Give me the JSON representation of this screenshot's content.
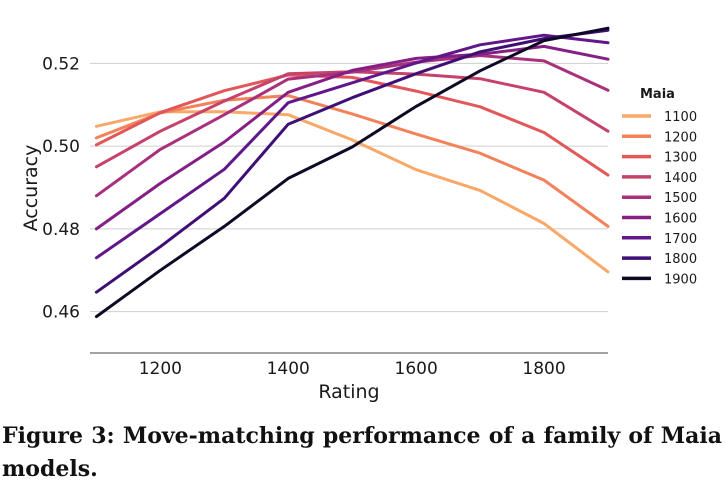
{
  "caption": "Figure 3: Move-matching performance of a family of Maia models.",
  "chart_data": {
    "type": "line",
    "title": "",
    "xlabel": "Rating",
    "ylabel": "Accuracy",
    "xlim": [
      1090,
      1900
    ],
    "ylim": [
      0.45,
      0.53
    ],
    "xticks": [
      1200,
      1400,
      1600,
      1800
    ],
    "xtick_labels": [
      "1200",
      "1400",
      "1600",
      "1800"
    ],
    "yticks": [
      0.46,
      0.48,
      0.5,
      0.52
    ],
    "ytick_labels": [
      "0.46",
      "0.48",
      "0.50",
      "0.52"
    ],
    "grid": "horizontal",
    "legend": {
      "title": "Maia",
      "placement": "right"
    },
    "x": [
      1100,
      1200,
      1300,
      1400,
      1500,
      1600,
      1700,
      1800,
      1900
    ],
    "series": [
      {
        "name": "1100",
        "color": "#f9a868",
        "values": [
          0.5048,
          0.5083,
          0.5083,
          0.5076,
          0.5015,
          0.4943,
          0.4893,
          0.4813,
          0.4696
        ]
      },
      {
        "name": "1200",
        "color": "#f2825a",
        "values": [
          0.502,
          0.508,
          0.5111,
          0.5122,
          0.5078,
          0.5029,
          0.4983,
          0.4918,
          0.4806
        ]
      },
      {
        "name": "1300",
        "color": "#e2575a",
        "values": [
          0.5003,
          0.5081,
          0.5134,
          0.5172,
          0.5166,
          0.5133,
          0.5095,
          0.5033,
          0.493
        ]
      },
      {
        "name": "1400",
        "color": "#c5426b",
        "values": [
          0.495,
          0.5036,
          0.5109,
          0.5175,
          0.518,
          0.5174,
          0.5163,
          0.513,
          0.5036
        ]
      },
      {
        "name": "1500",
        "color": "#a8317b",
        "values": [
          0.488,
          0.4992,
          0.5076,
          0.5162,
          0.5179,
          0.5203,
          0.5219,
          0.5206,
          0.5135
        ]
      },
      {
        "name": "1600",
        "color": "#851f86",
        "values": [
          0.48,
          0.491,
          0.501,
          0.513,
          0.5183,
          0.5212,
          0.5222,
          0.5241,
          0.521
        ]
      },
      {
        "name": "1700",
        "color": "#611789",
        "values": [
          0.473,
          0.4837,
          0.4944,
          0.5105,
          0.5153,
          0.5201,
          0.5245,
          0.5268,
          0.525
        ]
      },
      {
        "name": "1800",
        "color": "#3e1075",
        "values": [
          0.4647,
          0.4757,
          0.4874,
          0.5053,
          0.5117,
          0.5175,
          0.5228,
          0.526,
          0.528
        ]
      },
      {
        "name": "1900",
        "color": "#0e0a25",
        "values": [
          0.4588,
          0.47,
          0.4806,
          0.4922,
          0.4998,
          0.5096,
          0.5182,
          0.5255,
          0.5285
        ]
      }
    ]
  }
}
